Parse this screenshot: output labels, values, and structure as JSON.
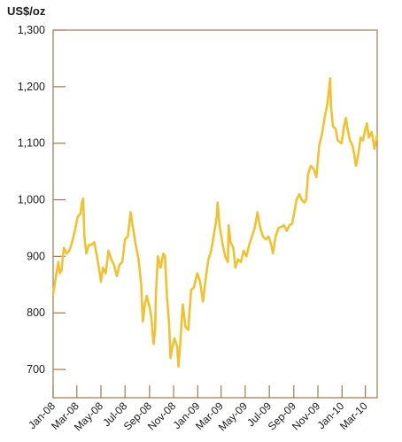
{
  "chart_data": {
    "type": "line",
    "title": "",
    "xlabel": "",
    "ylabel": "US$/oz",
    "ylim": [
      650,
      1300
    ],
    "xlim": [
      "2008-01-01",
      "2010-03-31"
    ],
    "grid": false,
    "legend": "none",
    "colors": {
      "line": "#F2C12E",
      "axis": "#A07850",
      "text": "#1a1a1a"
    },
    "yticks": [
      {
        "value": 700,
        "label": "700"
      },
      {
        "value": 800,
        "label": "800"
      },
      {
        "value": 900,
        "label": "900"
      },
      {
        "value": 1000,
        "label": "1,000"
      },
      {
        "value": 1100,
        "label": "1,100"
      },
      {
        "value": 1200,
        "label": "1,200"
      },
      {
        "value": 1300,
        "label": "1,300"
      }
    ],
    "xticks": [
      {
        "date": "2008-01-01",
        "label": "Jan-08"
      },
      {
        "date": "2008-03-01",
        "label": "Mar-08"
      },
      {
        "date": "2008-05-01",
        "label": "May-08"
      },
      {
        "date": "2008-07-01",
        "label": "Jul-08"
      },
      {
        "date": "2008-09-01",
        "label": "Sep-08"
      },
      {
        "date": "2008-11-01",
        "label": "Nov-08"
      },
      {
        "date": "2009-01-01",
        "label": "Jan-09"
      },
      {
        "date": "2009-03-01",
        "label": "Mar-09"
      },
      {
        "date": "2009-05-01",
        "label": "May-09"
      },
      {
        "date": "2009-07-01",
        "label": "Jul-09"
      },
      {
        "date": "2009-09-01",
        "label": "Sep-09"
      },
      {
        "date": "2009-11-01",
        "label": "Nov-09"
      },
      {
        "date": "2010-01-01",
        "label": "Jan-10"
      },
      {
        "date": "2010-03-01",
        "label": "Mar-10"
      }
    ],
    "series": [
      {
        "points": [
          [
            "2008-01-01",
            833
          ],
          [
            "2008-01-07",
            860
          ],
          [
            "2008-01-14",
            890
          ],
          [
            "2008-01-18",
            870
          ],
          [
            "2008-01-22",
            875
          ],
          [
            "2008-01-28",
            915
          ],
          [
            "2008-02-04",
            905
          ],
          [
            "2008-02-11",
            910
          ],
          [
            "2008-02-18",
            925
          ],
          [
            "2008-02-25",
            945
          ],
          [
            "2008-03-03",
            970
          ],
          [
            "2008-03-10",
            975
          ],
          [
            "2008-03-14",
            995
          ],
          [
            "2008-03-17",
            1002
          ],
          [
            "2008-03-20",
            935
          ],
          [
            "2008-03-25",
            905
          ],
          [
            "2008-03-31",
            920
          ],
          [
            "2008-04-07",
            920
          ],
          [
            "2008-04-14",
            925
          ],
          [
            "2008-04-21",
            900
          ],
          [
            "2008-04-28",
            870
          ],
          [
            "2008-05-01",
            855
          ],
          [
            "2008-05-06",
            880
          ],
          [
            "2008-05-13",
            870
          ],
          [
            "2008-05-20",
            910
          ],
          [
            "2008-05-27",
            895
          ],
          [
            "2008-06-03",
            885
          ],
          [
            "2008-06-10",
            865
          ],
          [
            "2008-06-17",
            885
          ],
          [
            "2008-06-24",
            890
          ],
          [
            "2008-07-01",
            930
          ],
          [
            "2008-07-08",
            935
          ],
          [
            "2008-07-15",
            978
          ],
          [
            "2008-07-21",
            950
          ],
          [
            "2008-07-28",
            920
          ],
          [
            "2008-08-04",
            895
          ],
          [
            "2008-08-11",
            850
          ],
          [
            "2008-08-15",
            785
          ],
          [
            "2008-08-20",
            815
          ],
          [
            "2008-08-25",
            830
          ],
          [
            "2008-09-01",
            810
          ],
          [
            "2008-09-05",
            795
          ],
          [
            "2008-09-11",
            745
          ],
          [
            "2008-09-15",
            770
          ],
          [
            "2008-09-17",
            830
          ],
          [
            "2008-09-22",
            900
          ],
          [
            "2008-09-29",
            880
          ],
          [
            "2008-10-06",
            905
          ],
          [
            "2008-10-10",
            900
          ],
          [
            "2008-10-15",
            830
          ],
          [
            "2008-10-20",
            785
          ],
          [
            "2008-10-24",
            720
          ],
          [
            "2008-10-27",
            735
          ],
          [
            "2008-11-03",
            755
          ],
          [
            "2008-11-10",
            740
          ],
          [
            "2008-11-13",
            705
          ],
          [
            "2008-11-17",
            740
          ],
          [
            "2008-11-24",
            815
          ],
          [
            "2008-12-01",
            775
          ],
          [
            "2008-12-08",
            770
          ],
          [
            "2008-12-15",
            840
          ],
          [
            "2008-12-22",
            845
          ],
          [
            "2008-12-31",
            870
          ],
          [
            "2009-01-07",
            855
          ],
          [
            "2009-01-14",
            820
          ],
          [
            "2009-01-21",
            860
          ],
          [
            "2009-01-28",
            895
          ],
          [
            "2009-02-04",
            910
          ],
          [
            "2009-02-11",
            940
          ],
          [
            "2009-02-18",
            970
          ],
          [
            "2009-02-20",
            995
          ],
          [
            "2009-02-25",
            955
          ],
          [
            "2009-03-04",
            925
          ],
          [
            "2009-03-11",
            900
          ],
          [
            "2009-03-18",
            890
          ],
          [
            "2009-03-20",
            955
          ],
          [
            "2009-03-25",
            925
          ],
          [
            "2009-04-01",
            915
          ],
          [
            "2009-04-06",
            880
          ],
          [
            "2009-04-13",
            895
          ],
          [
            "2009-04-20",
            890
          ],
          [
            "2009-04-27",
            910
          ],
          [
            "2009-05-04",
            900
          ],
          [
            "2009-05-11",
            920
          ],
          [
            "2009-05-18",
            935
          ],
          [
            "2009-05-25",
            950
          ],
          [
            "2009-06-01",
            978
          ],
          [
            "2009-06-08",
            950
          ],
          [
            "2009-06-15",
            935
          ],
          [
            "2009-06-22",
            930
          ],
          [
            "2009-06-29",
            935
          ],
          [
            "2009-07-06",
            920
          ],
          [
            "2009-07-10",
            905
          ],
          [
            "2009-07-17",
            935
          ],
          [
            "2009-07-24",
            950
          ],
          [
            "2009-07-31",
            952
          ],
          [
            "2009-08-07",
            955
          ],
          [
            "2009-08-14",
            945
          ],
          [
            "2009-08-21",
            955
          ],
          [
            "2009-08-28",
            958
          ],
          [
            "2009-09-04",
            985
          ],
          [
            "2009-09-08",
            1000
          ],
          [
            "2009-09-15",
            1010
          ],
          [
            "2009-09-21",
            1000
          ],
          [
            "2009-09-28",
            995
          ],
          [
            "2009-10-02",
            1000
          ],
          [
            "2009-10-07",
            1045
          ],
          [
            "2009-10-14",
            1060
          ],
          [
            "2009-10-21",
            1055
          ],
          [
            "2009-10-28",
            1040
          ],
          [
            "2009-11-04",
            1095
          ],
          [
            "2009-11-11",
            1115
          ],
          [
            "2009-11-18",
            1145
          ],
          [
            "2009-11-25",
            1170
          ],
          [
            "2009-12-02",
            1215
          ],
          [
            "2009-12-04",
            1165
          ],
          [
            "2009-12-09",
            1130
          ],
          [
            "2009-12-16",
            1125
          ],
          [
            "2009-12-21",
            1105
          ],
          [
            "2009-12-31",
            1100
          ],
          [
            "2010-01-06",
            1130
          ],
          [
            "2010-01-11",
            1145
          ],
          [
            "2010-01-15",
            1125
          ],
          [
            "2010-01-21",
            1105
          ],
          [
            "2010-01-28",
            1095
          ],
          [
            "2010-02-01",
            1080
          ],
          [
            "2010-02-05",
            1060
          ],
          [
            "2010-02-10",
            1075
          ],
          [
            "2010-02-17",
            1110
          ],
          [
            "2010-02-23",
            1105
          ],
          [
            "2010-03-01",
            1125
          ],
          [
            "2010-03-05",
            1135
          ],
          [
            "2010-03-10",
            1110
          ],
          [
            "2010-03-17",
            1120
          ],
          [
            "2010-03-24",
            1090
          ],
          [
            "2010-03-31",
            1115
          ]
        ]
      }
    ]
  }
}
